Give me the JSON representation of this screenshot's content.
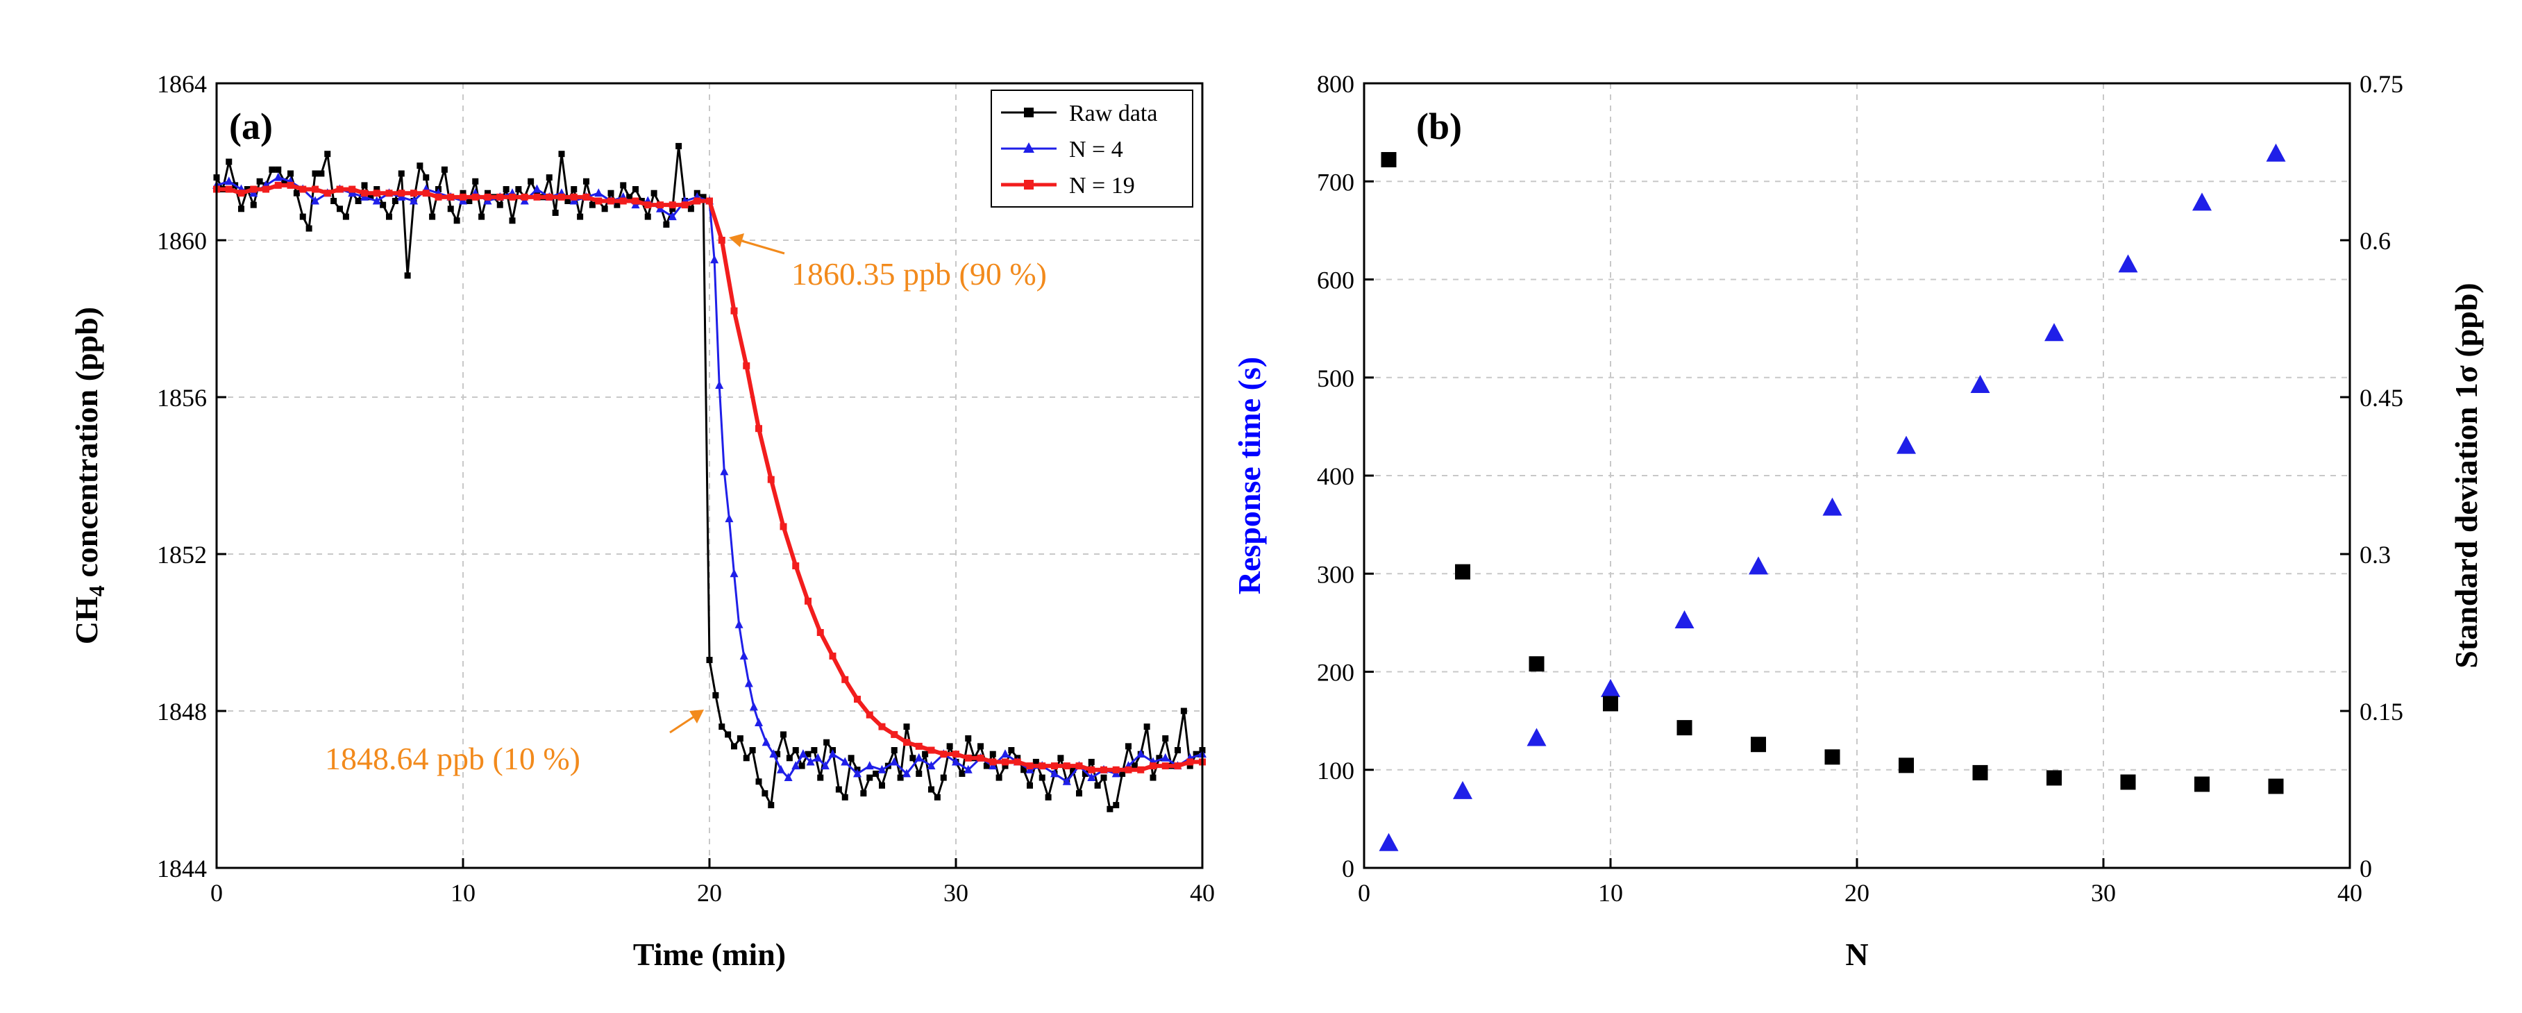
{
  "colors": {
    "raw": "#000000",
    "n4": "#1F1FE8",
    "n19": "#F21D1D",
    "annotation": "#F28A1C",
    "right_axis_label": "#0000FF"
  },
  "chart_data": [
    {
      "type": "line",
      "panel": "(a)",
      "xlabel": "Time (min)",
      "ylabel_main": "CH",
      "ylabel_sub": "4",
      "ylabel_rest": " concentration (ppb)",
      "xlim": [
        0,
        40
      ],
      "ylim": [
        1844,
        1864
      ],
      "xticks": [
        0,
        10,
        20,
        30,
        40
      ],
      "yticks": [
        1844,
        1848,
        1852,
        1856,
        1860,
        1864
      ],
      "grid": true,
      "legend_position": "top-right",
      "legend": [
        "Raw data",
        "N = 4",
        "N = 19"
      ],
      "annotations": [
        {
          "text": "1860.35 ppb (90 %)",
          "point": [
            20.5,
            1860.0
          ]
        },
        {
          "text": "1848.64 ppb (10 %)",
          "point": [
            19.8,
            1848.0
          ]
        }
      ],
      "series": [
        {
          "name": "Raw data",
          "x": [
            0.0,
            0.25,
            0.5,
            0.75,
            1.0,
            1.25,
            1.5,
            1.75,
            2.0,
            2.25,
            2.5,
            2.75,
            3.0,
            3.25,
            3.5,
            3.75,
            4.0,
            4.25,
            4.5,
            4.75,
            5.0,
            5.25,
            5.5,
            5.75,
            6.0,
            6.25,
            6.5,
            6.75,
            7.0,
            7.25,
            7.5,
            7.75,
            8.0,
            8.25,
            8.5,
            8.75,
            9.0,
            9.25,
            9.5,
            9.75,
            10.0,
            10.25,
            10.5,
            10.75,
            11.0,
            11.25,
            11.5,
            11.75,
            12.0,
            12.25,
            12.5,
            12.75,
            13.0,
            13.25,
            13.5,
            13.75,
            14.0,
            14.25,
            14.5,
            14.75,
            15.0,
            15.25,
            15.5,
            15.75,
            16.0,
            16.25,
            16.5,
            16.75,
            17.0,
            17.25,
            17.5,
            17.75,
            18.0,
            18.25,
            18.5,
            18.75,
            19.0,
            19.25,
            19.5,
            19.75,
            20.0,
            20.25,
            20.5,
            20.75,
            21.0,
            21.25,
            21.5,
            21.75,
            22.0,
            22.25,
            22.5,
            22.75,
            23.0,
            23.25,
            23.5,
            23.75,
            24.0,
            24.25,
            24.5,
            24.75,
            25.0,
            25.25,
            25.5,
            25.75,
            26.0,
            26.25,
            26.5,
            26.75,
            27.0,
            27.25,
            27.5,
            27.75,
            28.0,
            28.25,
            28.5,
            28.75,
            29.0,
            29.25,
            29.5,
            29.75,
            30.0,
            30.25,
            30.5,
            30.75,
            31.0,
            31.25,
            31.5,
            31.75,
            32.0,
            32.25,
            32.5,
            32.75,
            33.0,
            33.25,
            33.5,
            33.75,
            34.0,
            34.25,
            34.5,
            34.75,
            35.0,
            35.25,
            35.5,
            35.75,
            36.0,
            36.25,
            36.5,
            36.75,
            37.0,
            37.25,
            37.5,
            37.75,
            38.0,
            38.25,
            38.5,
            38.75,
            39.0,
            39.25,
            39.5,
            39.75,
            40.0
          ],
          "y": [
            1861.6,
            1861.3,
            1862.0,
            1861.4,
            1860.8,
            1861.3,
            1860.9,
            1861.5,
            1861.4,
            1861.8,
            1861.8,
            1861.5,
            1861.7,
            1861.2,
            1860.6,
            1860.3,
            1861.7,
            1861.7,
            1862.2,
            1861.0,
            1860.8,
            1860.6,
            1861.2,
            1861.0,
            1861.4,
            1861.1,
            1861.3,
            1860.9,
            1860.6,
            1861.0,
            1861.7,
            1859.1,
            1861.0,
            1861.9,
            1861.6,
            1860.6,
            1861.3,
            1861.8,
            1860.8,
            1860.5,
            1861.2,
            1861.0,
            1861.5,
            1860.6,
            1861.2,
            1861.1,
            1860.9,
            1861.3,
            1860.5,
            1861.3,
            1861.1,
            1861.5,
            1861.2,
            1861.1,
            1861.6,
            1860.7,
            1862.2,
            1861.0,
            1861.3,
            1860.6,
            1861.5,
            1860.9,
            1861.0,
            1860.8,
            1861.2,
            1860.9,
            1861.4,
            1861.1,
            1861.3,
            1861.0,
            1860.6,
            1861.2,
            1860.9,
            1860.4,
            1860.8,
            1862.4,
            1861.0,
            1860.8,
            1861.2,
            1861.1,
            1849.3,
            1848.4,
            1847.6,
            1847.4,
            1847.1,
            1847.3,
            1846.8,
            1847.0,
            1846.2,
            1845.9,
            1845.6,
            1846.9,
            1847.4,
            1846.8,
            1847.0,
            1846.6,
            1846.9,
            1847.0,
            1846.3,
            1847.2,
            1847.0,
            1846.0,
            1845.8,
            1846.8,
            1846.5,
            1845.9,
            1846.3,
            1846.4,
            1846.1,
            1846.6,
            1847.0,
            1846.3,
            1847.6,
            1846.8,
            1846.4,
            1846.9,
            1846.0,
            1845.8,
            1846.3,
            1847.1,
            1846.7,
            1846.4,
            1847.3,
            1846.8,
            1847.1,
            1846.6,
            1846.9,
            1846.3,
            1846.6,
            1847.0,
            1846.8,
            1846.5,
            1846.1,
            1846.7,
            1846.3,
            1845.8,
            1846.4,
            1846.8,
            1846.2,
            1846.5,
            1845.9,
            1846.4,
            1846.7,
            1846.1,
            1846.3,
            1845.5,
            1845.6,
            1846.4,
            1847.1,
            1846.6,
            1846.9,
            1847.6,
            1846.3,
            1846.8,
            1847.3,
            1846.6,
            1847.0,
            1848.0,
            1846.6,
            1846.9,
            1847.0
          ],
          "raw_note": ""
        },
        {
          "name": "N = 4",
          "x": [
            0.0,
            0.5,
            1.0,
            1.5,
            2.0,
            2.5,
            3.0,
            3.5,
            4.0,
            4.5,
            5.0,
            5.5,
            6.0,
            6.5,
            7.0,
            7.5,
            8.0,
            8.5,
            9.0,
            9.5,
            10.0,
            10.5,
            11.0,
            11.5,
            12.0,
            12.5,
            13.0,
            13.5,
            14.0,
            14.5,
            15.0,
            15.5,
            16.0,
            16.5,
            17.0,
            17.5,
            18.0,
            18.5,
            19.0,
            19.5,
            20.0,
            20.2,
            20.4,
            20.6,
            20.8,
            21.0,
            21.2,
            21.4,
            21.6,
            21.8,
            22.0,
            22.3,
            22.6,
            22.9,
            23.2,
            23.5,
            23.8,
            24.1,
            24.4,
            24.7,
            25.0,
            25.5,
            26.0,
            26.5,
            27.0,
            27.5,
            28.0,
            28.5,
            29.0,
            29.5,
            30.0,
            30.5,
            31.0,
            31.5,
            32.0,
            32.5,
            33.0,
            33.5,
            34.0,
            34.5,
            35.0,
            35.5,
            36.0,
            36.5,
            37.0,
            37.5,
            38.0,
            38.5,
            39.0,
            39.5,
            40.0
          ],
          "y": [
            1861.4,
            1861.5,
            1861.3,
            1861.2,
            1861.4,
            1861.6,
            1861.5,
            1861.3,
            1861.0,
            1861.2,
            1861.3,
            1861.2,
            1861.1,
            1861.0,
            1861.2,
            1861.1,
            1861.0,
            1861.3,
            1861.2,
            1861.1,
            1861.0,
            1861.2,
            1861.0,
            1861.1,
            1861.2,
            1861.0,
            1861.3,
            1861.1,
            1861.2,
            1861.0,
            1861.1,
            1861.2,
            1861.0,
            1861.1,
            1860.9,
            1861.0,
            1860.8,
            1860.6,
            1861.0,
            1861.1,
            1861.0,
            1859.5,
            1856.3,
            1854.1,
            1852.9,
            1851.5,
            1850.2,
            1849.4,
            1848.7,
            1848.1,
            1847.7,
            1847.2,
            1846.9,
            1846.5,
            1846.3,
            1846.6,
            1846.9,
            1846.7,
            1846.8,
            1846.6,
            1846.9,
            1846.7,
            1846.4,
            1846.6,
            1846.5,
            1846.7,
            1846.4,
            1846.8,
            1846.6,
            1846.9,
            1846.7,
            1846.5,
            1846.8,
            1846.6,
            1846.9,
            1846.7,
            1846.5,
            1846.6,
            1846.4,
            1846.2,
            1846.6,
            1846.3,
            1846.5,
            1846.4,
            1846.6,
            1846.9,
            1846.7,
            1846.8,
            1846.6,
            1846.8,
            1846.9
          ]
        },
        {
          "name": "N = 19",
          "x": [
            0.0,
            0.5,
            1.0,
            1.5,
            2.0,
            2.5,
            3.0,
            3.5,
            4.0,
            4.5,
            5.0,
            5.5,
            6.0,
            6.5,
            7.0,
            7.5,
            8.0,
            8.5,
            9.0,
            9.5,
            10.0,
            10.5,
            11.0,
            11.5,
            12.0,
            12.5,
            13.0,
            13.5,
            14.0,
            14.5,
            15.0,
            15.5,
            16.0,
            16.5,
            17.0,
            17.5,
            18.0,
            18.5,
            19.0,
            19.5,
            20.0,
            20.5,
            21.0,
            21.5,
            22.0,
            22.5,
            23.0,
            23.5,
            24.0,
            24.5,
            25.0,
            25.5,
            26.0,
            26.5,
            27.0,
            27.5,
            28.0,
            28.5,
            29.0,
            29.5,
            30.0,
            30.5,
            31.0,
            31.5,
            32.0,
            32.5,
            33.0,
            33.5,
            34.0,
            34.5,
            35.0,
            35.5,
            36.0,
            36.5,
            37.0,
            37.5,
            38.0,
            38.5,
            39.0,
            39.5,
            40.0
          ],
          "y": [
            1861.3,
            1861.3,
            1861.2,
            1861.3,
            1861.3,
            1861.4,
            1861.4,
            1861.3,
            1861.3,
            1861.2,
            1861.3,
            1861.3,
            1861.2,
            1861.2,
            1861.2,
            1861.2,
            1861.2,
            1861.2,
            1861.1,
            1861.1,
            1861.1,
            1861.1,
            1861.1,
            1861.1,
            1861.1,
            1861.1,
            1861.1,
            1861.1,
            1861.1,
            1861.1,
            1861.1,
            1861.0,
            1861.0,
            1861.0,
            1861.0,
            1860.9,
            1860.9,
            1860.9,
            1860.9,
            1861.0,
            1861.0,
            1860.0,
            1858.2,
            1856.8,
            1855.2,
            1853.9,
            1852.7,
            1851.7,
            1850.8,
            1850.0,
            1849.4,
            1848.8,
            1848.3,
            1847.9,
            1847.6,
            1847.4,
            1847.2,
            1847.1,
            1847.0,
            1846.9,
            1846.9,
            1846.8,
            1846.8,
            1846.7,
            1846.7,
            1846.7,
            1846.6,
            1846.6,
            1846.6,
            1846.6,
            1846.6,
            1846.5,
            1846.5,
            1846.5,
            1846.5,
            1846.5,
            1846.6,
            1846.6,
            1846.6,
            1846.7,
            1846.7
          ]
        }
      ]
    },
    {
      "type": "scatter",
      "panel": "(b)",
      "xlabel": "N",
      "ylabel_left": "Response time (s)",
      "ylabel_right": "Standard deviation 1σ (ppb)",
      "xlim": [
        0,
        40
      ],
      "ylim_left": [
        0,
        800
      ],
      "ylim_right": [
        0,
        0.75
      ],
      "xticks": [
        0,
        10,
        20,
        30,
        40
      ],
      "yticks_left": [
        0,
        100,
        200,
        300,
        400,
        500,
        600,
        700,
        800
      ],
      "yticks_right": [
        "0",
        "0.15",
        "0.3",
        "0.45",
        "0.6",
        "0.75"
      ],
      "yticks_right_values": [
        0,
        0.15,
        0.3,
        0.45,
        0.6,
        0.75
      ],
      "grid": true,
      "series": [
        {
          "name": "Response time",
          "axis": "left",
          "marker": "triangle",
          "x": [
            1,
            4,
            7,
            10,
            13,
            16,
            19,
            22,
            25,
            28,
            31,
            34,
            37
          ],
          "values": [
            25,
            78,
            132,
            182,
            252,
            307,
            367,
            430,
            492,
            545,
            615,
            678,
            728
          ]
        },
        {
          "name": "Standard deviation",
          "axis": "right",
          "marker": "square",
          "x": [
            1,
            4,
            7,
            10,
            13,
            16,
            19,
            22,
            25,
            28,
            31,
            34,
            37
          ],
          "values": [
            0.677,
            0.283,
            0.195,
            0.157,
            0.134,
            0.118,
            0.106,
            0.098,
            0.091,
            0.086,
            0.082,
            0.08,
            0.078
          ]
        }
      ]
    }
  ]
}
